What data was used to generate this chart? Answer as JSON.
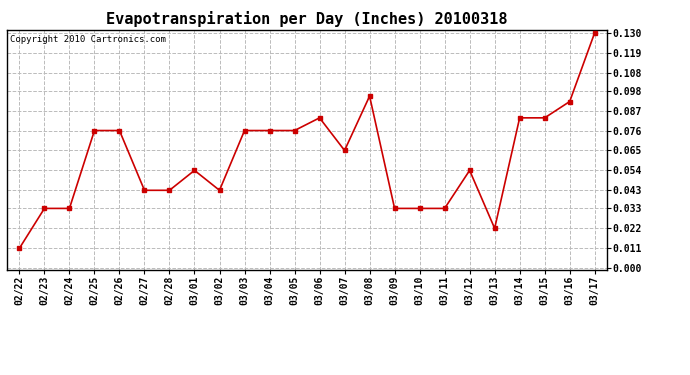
{
  "title": "Evapotranspiration per Day (Inches) 20100318",
  "copyright_text": "Copyright 2010 Cartronics.com",
  "dates": [
    "02/22",
    "02/23",
    "02/24",
    "02/25",
    "02/26",
    "02/27",
    "02/28",
    "03/01",
    "03/02",
    "03/03",
    "03/04",
    "03/05",
    "03/06",
    "03/07",
    "03/08",
    "03/09",
    "03/10",
    "03/11",
    "03/12",
    "03/13",
    "03/14",
    "03/15",
    "03/16",
    "03/17"
  ],
  "values": [
    0.011,
    0.033,
    0.033,
    0.076,
    0.076,
    0.043,
    0.043,
    0.054,
    0.043,
    0.076,
    0.076,
    0.076,
    0.083,
    0.065,
    0.095,
    0.033,
    0.033,
    0.033,
    0.054,
    0.022,
    0.083,
    0.083,
    0.092,
    0.13
  ],
  "line_color": "#cc0000",
  "marker": "s",
  "marker_size": 2.5,
  "line_width": 1.2,
  "bg_color": "#ffffff",
  "plot_bg_color": "#ffffff",
  "grid_color": "#bbbbbb",
  "grid_style": "--",
  "ylim": [
    -0.001,
    0.1315
  ],
  "yticks": [
    0.0,
    0.011,
    0.022,
    0.033,
    0.043,
    0.054,
    0.065,
    0.076,
    0.087,
    0.098,
    0.108,
    0.119,
    0.13
  ],
  "title_fontsize": 11,
  "copyright_fontsize": 6.5,
  "tick_fontsize": 7,
  "border_color": "#000000"
}
